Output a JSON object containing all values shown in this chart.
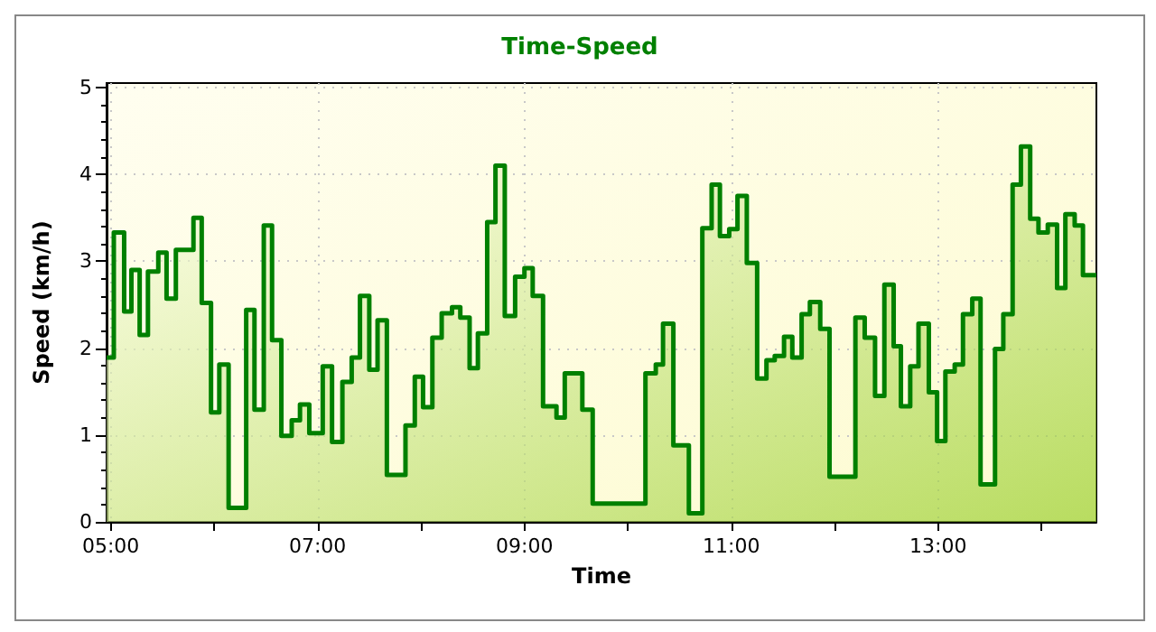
{
  "chart_data": {
    "type": "area",
    "title": "Time-Speed",
    "xlabel": "Time",
    "ylabel": "Speed (km/h)",
    "x": [
      4.96,
      5.03,
      5.03,
      5.13,
      5.13,
      5.2,
      5.2,
      5.28,
      5.28,
      5.36,
      5.36,
      5.46,
      5.46,
      5.54,
      5.54,
      5.63,
      5.63,
      5.8,
      5.8,
      5.88,
      5.88,
      5.97,
      5.97,
      6.05,
      6.05,
      6.14,
      6.14,
      6.31,
      6.31,
      6.39,
      6.39,
      6.48,
      6.48,
      6.56,
      6.56,
      6.65,
      6.65,
      6.75,
      6.75,
      6.83,
      6.83,
      6.92,
      6.92,
      7.05,
      7.05,
      7.14,
      7.14,
      7.24,
      7.24,
      7.33,
      7.33,
      7.41,
      7.41,
      7.5,
      7.5,
      7.58,
      7.58,
      7.67,
      7.67,
      7.85,
      7.85,
      7.94,
      7.94,
      8.02,
      8.02,
      8.11,
      8.11,
      8.2,
      8.2,
      8.3,
      8.3,
      8.38,
      8.38,
      8.47,
      8.47,
      8.55,
      8.55,
      8.64,
      8.64,
      8.72,
      8.72,
      8.81,
      8.81,
      8.91,
      8.91,
      9.0,
      9.0,
      9.08,
      9.08,
      9.18,
      9.18,
      9.31,
      9.31,
      9.39,
      9.39,
      9.56,
      9.56,
      9.66,
      9.66,
      10.17,
      10.17,
      10.27,
      10.27,
      10.34,
      10.34,
      10.44,
      10.44,
      10.59,
      10.59,
      10.72,
      10.72,
      10.81,
      10.81,
      10.89,
      10.89,
      10.98,
      10.98,
      11.06,
      11.06,
      11.15,
      11.15,
      11.25,
      11.25,
      11.34,
      11.34,
      11.42,
      11.42,
      11.51,
      11.51,
      11.59,
      11.59,
      11.68,
      11.68,
      11.76,
      11.76,
      11.86,
      11.86,
      11.95,
      11.95,
      12.2,
      12.2,
      12.29,
      12.29,
      12.39,
      12.39,
      12.48,
      12.48,
      12.57,
      12.57,
      12.64,
      12.64,
      12.73,
      12.73,
      12.81,
      12.81,
      12.91,
      12.91,
      12.99,
      12.99,
      13.07,
      13.07,
      13.16,
      13.16,
      13.24,
      13.24,
      13.33,
      13.33,
      13.41,
      13.41,
      13.55,
      13.55,
      13.63,
      13.63,
      13.72,
      13.72,
      13.8,
      13.8,
      13.89,
      13.89,
      13.97,
      13.97,
      14.06,
      14.06,
      14.15,
      14.15,
      14.23,
      14.23,
      14.32,
      14.32,
      14.4,
      14.4,
      14.53
    ],
    "series": [
      {
        "color": "#008000",
        "values": [
          1.89,
          1.89,
          3.33,
          3.33,
          2.42,
          2.42,
          2.9,
          2.9,
          2.15,
          2.15,
          2.88,
          2.88,
          3.1,
          3.1,
          2.57,
          2.57,
          3.13,
          3.13,
          3.5,
          3.5,
          2.52,
          2.52,
          1.26,
          1.26,
          1.81,
          1.81,
          0.16,
          0.16,
          2.44,
          2.44,
          1.29,
          1.29,
          3.41,
          3.41,
          2.09,
          2.09,
          0.99,
          0.99,
          1.17,
          1.17,
          1.35,
          1.35,
          1.02,
          1.02,
          1.79,
          1.79,
          0.92,
          0.92,
          1.61,
          1.61,
          1.89,
          1.89,
          2.6,
          2.6,
          1.75,
          1.75,
          2.32,
          2.32,
          0.54,
          0.54,
          1.11,
          1.11,
          1.67,
          1.67,
          1.32,
          1.32,
          2.12,
          2.12,
          2.4,
          2.4,
          2.47,
          2.47,
          2.35,
          2.35,
          1.77,
          1.77,
          2.17,
          2.17,
          3.45,
          3.45,
          4.1,
          4.1,
          2.37,
          2.37,
          2.82,
          2.82,
          2.92,
          2.92,
          2.6,
          2.6,
          1.33,
          1.33,
          1.2,
          1.2,
          1.71,
          1.71,
          1.29,
          1.29,
          0.21,
          0.21,
          1.71,
          1.71,
          1.81,
          1.81,
          2.28,
          2.28,
          0.88,
          0.88,
          0.1,
          0.1,
          3.38,
          3.38,
          3.88,
          3.88,
          3.29,
          3.29,
          3.37,
          3.37,
          3.75,
          3.75,
          2.98,
          2.98,
          1.65,
          1.65,
          1.86,
          1.86,
          1.91,
          1.91,
          2.13,
          2.13,
          1.89,
          1.89,
          2.39,
          2.39,
          2.53,
          2.53,
          2.22,
          2.22,
          0.52,
          0.52,
          2.35,
          2.35,
          2.12,
          2.12,
          1.45,
          1.45,
          2.73,
          2.73,
          2.02,
          2.02,
          1.33,
          1.33,
          1.79,
          1.79,
          2.28,
          2.28,
          1.49,
          1.49,
          0.93,
          0.93,
          1.73,
          1.73,
          1.81,
          1.81,
          2.39,
          2.39,
          2.57,
          2.57,
          0.43,
          0.43,
          1.99,
          1.99,
          2.39,
          2.39,
          3.88,
          3.88,
          4.32,
          4.32,
          3.49,
          3.49,
          3.33,
          3.33,
          3.42,
          3.42,
          2.69,
          2.69,
          3.54,
          3.54,
          3.41,
          3.41,
          2.84,
          2.84
        ]
      }
    ],
    "xlim": [
      4.96,
      14.53
    ],
    "xticks": [
      {
        "value": 5,
        "label": "05:00"
      },
      {
        "value": 6,
        "label": null
      },
      {
        "value": 7,
        "label": "07:00"
      },
      {
        "value": 8,
        "label": null
      },
      {
        "value": 9,
        "label": "09:00"
      },
      {
        "value": 10,
        "label": null
      },
      {
        "value": 11,
        "label": "11:00"
      },
      {
        "value": 12,
        "label": null
      },
      {
        "value": 13,
        "label": "13:00"
      },
      {
        "value": 14,
        "label": null
      }
    ],
    "ylim": [
      0,
      5.05
    ],
    "yticks": [
      0,
      1,
      2,
      3,
      4,
      5
    ],
    "grid": true,
    "marker": "none",
    "line_style": "solid"
  }
}
